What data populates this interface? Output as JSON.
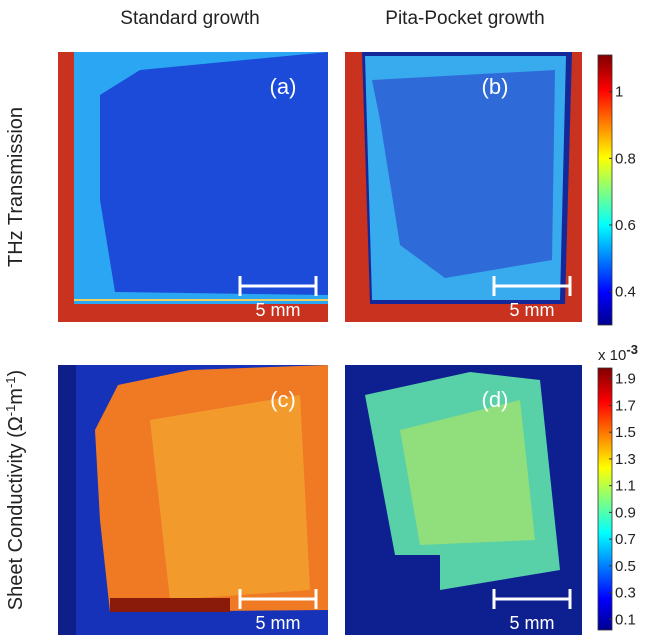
{
  "columns": [
    "Standard growth",
    "Pita-Pocket growth"
  ],
  "rows": [
    {
      "label": "THz Transmission",
      "panels": [
        "(a)",
        "(b)"
      ],
      "scale_bars": [
        "5 mm",
        "5 mm"
      ],
      "colorbar": {
        "lim": [
          0.3,
          1.11
        ],
        "ticks": [
          0.4,
          0.6,
          0.8,
          1
        ]
      }
    },
    {
      "label": [
        "Sheet Conductivity (Ω",
        "-1",
        "m",
        "-1",
        ")"
      ],
      "panels": [
        "(c)",
        "(d)"
      ],
      "scale_bars": [
        "5 mm",
        "5 mm"
      ],
      "colorbar": {
        "multiplier": [
          "x 10",
          "-3"
        ],
        "lim": [
          0.02,
          1.98
        ],
        "ticks": [
          0.1,
          0.3,
          0.5,
          0.7,
          0.9,
          1.1,
          1.3,
          1.5,
          1.7,
          1.9
        ]
      }
    }
  ]
}
